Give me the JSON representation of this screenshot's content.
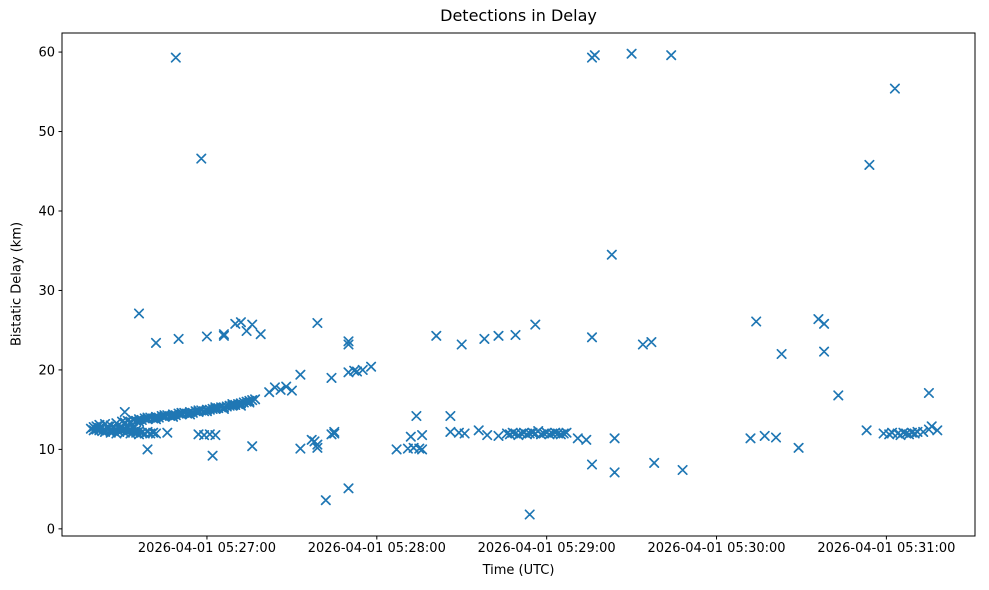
{
  "chart_data": {
    "type": "scatter",
    "title": "Detections in Delay",
    "xlabel": "Time (UTC)",
    "ylabel": "Bistatic Delay (km)",
    "marker": "x",
    "marker_color": "#1f77b4",
    "axis_color": "#000000",
    "background": "#ffffff",
    "grid": false,
    "legend": "none",
    "x_unit": "seconds after 2026-04-01 05:26:00 UTC",
    "xlim": [
      8.8,
      331.3
    ],
    "ylim": [
      -0.9,
      62.4
    ],
    "x_ticks": [
      {
        "t": 60,
        "label": "2026-04-01 05:27:00"
      },
      {
        "t": 120,
        "label": "2026-04-01 05:28:00"
      },
      {
        "t": 180,
        "label": "2026-04-01 05:29:00"
      },
      {
        "t": 240,
        "label": "2026-04-01 05:30:00"
      },
      {
        "t": 300,
        "label": "2026-04-01 05:31:00"
      }
    ],
    "y_ticks": [
      0,
      10,
      20,
      30,
      40,
      50,
      60
    ],
    "points": [
      [
        19,
        12.6
      ],
      [
        20,
        12.8
      ],
      [
        20,
        12.4
      ],
      [
        21,
        12.5
      ],
      [
        21,
        12.9
      ],
      [
        22,
        12.4
      ],
      [
        22,
        12.7
      ],
      [
        22,
        13.1
      ],
      [
        23,
        12.3
      ],
      [
        23,
        12.8
      ],
      [
        24,
        12.5
      ],
      [
        24,
        13.2
      ],
      [
        24,
        12.2
      ],
      [
        25,
        12.6
      ],
      [
        25,
        12.9
      ],
      [
        26,
        12.4
      ],
      [
        26,
        13.0
      ],
      [
        26,
        12.1
      ],
      [
        27,
        12.7
      ],
      [
        27,
        12.3
      ],
      [
        28,
        12.5
      ],
      [
        28,
        13.3
      ],
      [
        28,
        12.0
      ],
      [
        29,
        12.6
      ],
      [
        29,
        12.2
      ],
      [
        30,
        12.8
      ],
      [
        30,
        12.4
      ],
      [
        31,
        12.1
      ],
      [
        31,
        12.5
      ],
      [
        32,
        12.3
      ],
      [
        32,
        12.7
      ],
      [
        33,
        12.0
      ],
      [
        33,
        12.4
      ],
      [
        34,
        12.2
      ],
      [
        34,
        12.6
      ],
      [
        35,
        12.1
      ],
      [
        35,
        12.4
      ],
      [
        36,
        11.9
      ],
      [
        36,
        12.3
      ],
      [
        37,
        12.1
      ],
      [
        38,
        12.0
      ],
      [
        39,
        12.2
      ],
      [
        40,
        12.0
      ],
      [
        41,
        12.1
      ],
      [
        30,
        13.5
      ],
      [
        31,
        13.4
      ],
      [
        32,
        13.6
      ],
      [
        33,
        13.5
      ],
      [
        33,
        13.3
      ],
      [
        34,
        13.7
      ],
      [
        35,
        13.6
      ],
      [
        36,
        13.8
      ],
      [
        36,
        13.5
      ],
      [
        37,
        13.7
      ],
      [
        38,
        13.9
      ],
      [
        39,
        13.8
      ],
      [
        39,
        14.0
      ],
      [
        40,
        14.0
      ],
      [
        41,
        13.9
      ],
      [
        42,
        14.1
      ],
      [
        42,
        13.8
      ],
      [
        43,
        14.0
      ],
      [
        44,
        14.2
      ],
      [
        45,
        14.1
      ],
      [
        45,
        14.3
      ],
      [
        46,
        14.3
      ],
      [
        47,
        14.2
      ],
      [
        48,
        14.4
      ],
      [
        48,
        14.1
      ],
      [
        49,
        14.3
      ],
      [
        50,
        14.5
      ],
      [
        51,
        14.4
      ],
      [
        51,
        14.6
      ],
      [
        52,
        14.6
      ],
      [
        53,
        14.5
      ],
      [
        54,
        14.7
      ],
      [
        54,
        14.4
      ],
      [
        55,
        14.6
      ],
      [
        56,
        14.8
      ],
      [
        57,
        14.7
      ],
      [
        57,
        14.9
      ],
      [
        58,
        14.9
      ],
      [
        59,
        14.8
      ],
      [
        60,
        15.0
      ],
      [
        60,
        14.8
      ],
      [
        61,
        15.0
      ],
      [
        62,
        15.1
      ],
      [
        63,
        15.1
      ],
      [
        63,
        15.3
      ],
      [
        64,
        15.2
      ],
      [
        65,
        15.3
      ],
      [
        66,
        15.3
      ],
      [
        66,
        15.1
      ],
      [
        67,
        15.4
      ],
      [
        68,
        15.5
      ],
      [
        69,
        15.5
      ],
      [
        69,
        15.7
      ],
      [
        70,
        15.6
      ],
      [
        71,
        15.7
      ],
      [
        72,
        15.8
      ],
      [
        72,
        15.5
      ],
      [
        73,
        15.9
      ],
      [
        74,
        16.0
      ],
      [
        75,
        16.1
      ],
      [
        75,
        15.9
      ],
      [
        76,
        16.2
      ],
      [
        77,
        16.3
      ],
      [
        31,
        14.7
      ],
      [
        36,
        27.1
      ],
      [
        39,
        10.0
      ],
      [
        42,
        23.4
      ],
      [
        42,
        12.0
      ],
      [
        46,
        12.1
      ],
      [
        49,
        59.3
      ],
      [
        50,
        23.9
      ],
      [
        57,
        11.9
      ],
      [
        58,
        46.6
      ],
      [
        59,
        11.8
      ],
      [
        60,
        24.2
      ],
      [
        61,
        11.9
      ],
      [
        62,
        9.2
      ],
      [
        63,
        11.8
      ],
      [
        66,
        24.3
      ],
      [
        66,
        24.5
      ],
      [
        70,
        25.8
      ],
      [
        72,
        26.0
      ],
      [
        74,
        24.9
      ],
      [
        76,
        25.7
      ],
      [
        76,
        10.4
      ],
      [
        79,
        24.5
      ],
      [
        82,
        17.2
      ],
      [
        84,
        17.8
      ],
      [
        86,
        17.5
      ],
      [
        88,
        17.9
      ],
      [
        90,
        17.4
      ],
      [
        93,
        19.4
      ],
      [
        93,
        10.1
      ],
      [
        97,
        11.2
      ],
      [
        98,
        11.0
      ],
      [
        99,
        10.6
      ],
      [
        99,
        10.2
      ],
      [
        99,
        25.9
      ],
      [
        102,
        3.6
      ],
      [
        104,
        19.0
      ],
      [
        104,
        11.9
      ],
      [
        105,
        12.0
      ],
      [
        105,
        12.2
      ],
      [
        110,
        23.2
      ],
      [
        110,
        23.6
      ],
      [
        110,
        19.7
      ],
      [
        110,
        5.1
      ],
      [
        112,
        19.9
      ],
      [
        113,
        19.8
      ],
      [
        115,
        20.0
      ],
      [
        118,
        20.4
      ],
      [
        127,
        10.0
      ],
      [
        131,
        10.1
      ],
      [
        132,
        11.6
      ],
      [
        133,
        10.2
      ],
      [
        134,
        14.2
      ],
      [
        135,
        10.1
      ],
      [
        136,
        10.0
      ],
      [
        136,
        11.8
      ],
      [
        141,
        24.3
      ],
      [
        146,
        14.2
      ],
      [
        146,
        12.2
      ],
      [
        149,
        12.1
      ],
      [
        150,
        23.2
      ],
      [
        151,
        12.0
      ],
      [
        156,
        12.4
      ],
      [
        158,
        23.9
      ],
      [
        159,
        11.8
      ],
      [
        163,
        24.3
      ],
      [
        163,
        11.7
      ],
      [
        169,
        24.4
      ],
      [
        166,
        12.0
      ],
      [
        167,
        11.9
      ],
      [
        168,
        12.1
      ],
      [
        169,
        12.0
      ],
      [
        170,
        11.8
      ],
      [
        171,
        12.0
      ],
      [
        172,
        12.1
      ],
      [
        173,
        11.9
      ],
      [
        174,
        12.0
      ],
      [
        175,
        12.1
      ],
      [
        176,
        12.0
      ],
      [
        177,
        12.3
      ],
      [
        178,
        11.9
      ],
      [
        179,
        12.0
      ],
      [
        180,
        12.1
      ],
      [
        181,
        11.9
      ],
      [
        182,
        12.0
      ],
      [
        183,
        12.1
      ],
      [
        184,
        12.0
      ],
      [
        185,
        11.9
      ],
      [
        186,
        12.0
      ],
      [
        187,
        12.1
      ],
      [
        174,
        1.8
      ],
      [
        176,
        25.7
      ],
      [
        191,
        11.4
      ],
      [
        194,
        11.2
      ],
      [
        196,
        59.3
      ],
      [
        196,
        24.1
      ],
      [
        196,
        8.1
      ],
      [
        197,
        59.6
      ],
      [
        203,
        34.5
      ],
      [
        204,
        11.4
      ],
      [
        204,
        7.1
      ],
      [
        210,
        59.8
      ],
      [
        214,
        23.2
      ],
      [
        217,
        23.5
      ],
      [
        218,
        8.3
      ],
      [
        224,
        59.6
      ],
      [
        228,
        7.4
      ],
      [
        252,
        11.4
      ],
      [
        254,
        26.1
      ],
      [
        257,
        11.7
      ],
      [
        261,
        11.5
      ],
      [
        263,
        22.0
      ],
      [
        269,
        10.2
      ],
      [
        276,
        26.4
      ],
      [
        278,
        25.8
      ],
      [
        278,
        22.3
      ],
      [
        283,
        16.8
      ],
      [
        293,
        12.4
      ],
      [
        294,
        45.8
      ],
      [
        303,
        55.4
      ],
      [
        315,
        17.1
      ],
      [
        299,
        12.0
      ],
      [
        301,
        11.9
      ],
      [
        302,
        12.1
      ],
      [
        304,
        12.0
      ],
      [
        305,
        11.8
      ],
      [
        306,
        12.1
      ],
      [
        307,
        12.0
      ],
      [
        308,
        11.9
      ],
      [
        309,
        12.1
      ],
      [
        310,
        12.0
      ],
      [
        311,
        12.2
      ],
      [
        313,
        12.2
      ],
      [
        315,
        12.5
      ],
      [
        316,
        12.9
      ],
      [
        318,
        12.4
      ]
    ]
  }
}
